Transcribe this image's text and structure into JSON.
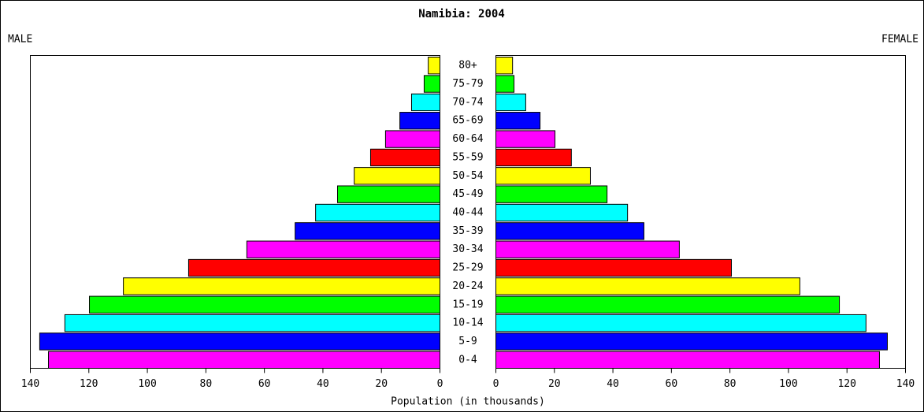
{
  "chart_data": {
    "type": "pyramid",
    "title": "Namibia: 2004",
    "categories": [
      "80+",
      "75-79",
      "70-74",
      "65-69",
      "60-64",
      "55-59",
      "50-54",
      "45-49",
      "40-44",
      "35-39",
      "30-34",
      "25-29",
      "20-24",
      "15-19",
      "10-14",
      "5-9",
      "0-4"
    ],
    "colors": [
      "#ffff00",
      "#00ff00",
      "#00ffff",
      "#0000ff",
      "#ff00ff",
      "#ff0000",
      "#ffff00",
      "#00ff00",
      "#00ffff",
      "#0000ff",
      "#ff00ff",
      "#ff0000",
      "#ffff00",
      "#00ff00",
      "#00ffff",
      "#0000ff",
      "#ff00ff"
    ],
    "series": [
      {
        "name": "MALE",
        "values": [
          4.0,
          5.4,
          9.7,
          13.7,
          18.6,
          23.7,
          29.3,
          35.0,
          42.5,
          49.5,
          66.0,
          85.9,
          108.2,
          119.8,
          128.2,
          136.8,
          133.8
        ]
      },
      {
        "name": "FEMALE",
        "values": [
          5.7,
          6.2,
          10.2,
          15.1,
          20.2,
          25.8,
          32.3,
          38.0,
          45.0,
          50.6,
          62.7,
          80.5,
          103.9,
          117.4,
          126.5,
          133.8,
          131.1
        ]
      }
    ],
    "xlabel": "Population (in thousands)",
    "xlim": [
      0,
      140
    ],
    "xticks": [
      0,
      20,
      40,
      60,
      80,
      100,
      120,
      140
    ]
  }
}
